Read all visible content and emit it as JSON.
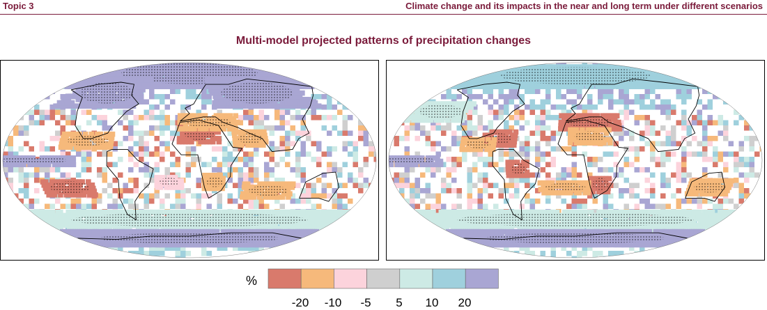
{
  "header": {
    "left": "Topic 3",
    "right": "Climate change and its impacts in the near and long term under different scenarios"
  },
  "title": "Multi-model projected patterns of precipitation changes",
  "legend": {
    "unit": "%",
    "colors": [
      "#d97a6c",
      "#f6b97b",
      "#fcd3dc",
      "#cfcfcf",
      "#cdeae5",
      "#9fd0dd",
      "#a9a6d3"
    ],
    "tick_labels": [
      "-20",
      "-10",
      "-5",
      "5",
      "10",
      "20"
    ]
  },
  "maps": [
    {
      "name": "left",
      "features": [
        {
          "name": "arctic",
          "class": 6,
          "lat": 80,
          "lon": 0,
          "rlat": 12,
          "rlon": 180
        },
        {
          "name": "north-asia",
          "class": 6,
          "lat": 62,
          "lon": 90,
          "rlat": 12,
          "rlon": 60
        },
        {
          "name": "north-america",
          "class": 6,
          "lat": 62,
          "lon": -110,
          "rlat": 12,
          "rlon": 45
        },
        {
          "name": "southern-ocean",
          "class": 4,
          "lat": -55,
          "lon": 0,
          "rlat": 8,
          "rlon": 180
        },
        {
          "name": "antarctica",
          "class": 6,
          "lat": -72,
          "lon": 0,
          "rlat": 6,
          "rlon": 180
        },
        {
          "name": "equatorial-pacific",
          "class": 6,
          "lat": 0,
          "lon": -150,
          "rlat": 4,
          "rlon": 40
        },
        {
          "name": "sahara",
          "class": 0,
          "lat": 25,
          "lon": 10,
          "rlat": 8,
          "rlon": 20
        },
        {
          "name": "mediterranean",
          "class": 1,
          "lat": 35,
          "lon": 20,
          "rlat": 6,
          "rlon": 30
        },
        {
          "name": "middle-east",
          "class": 1,
          "lat": 20,
          "lon": 60,
          "rlat": 6,
          "rlon": 15
        },
        {
          "name": "central-america",
          "class": 1,
          "lat": 18,
          "lon": -100,
          "rlat": 6,
          "rlon": 25
        },
        {
          "name": "south-pacific",
          "class": 0,
          "lat": -25,
          "lon": -120,
          "rlat": 7,
          "rlon": 25
        },
        {
          "name": "south-indian",
          "class": 1,
          "lat": -28,
          "lon": 80,
          "rlat": 6,
          "rlon": 25
        },
        {
          "name": "southern-africa",
          "class": 1,
          "lat": -20,
          "lon": 25,
          "rlat": 6,
          "rlon": 10
        },
        {
          "name": "atlantic-south",
          "class": 2,
          "lat": -20,
          "lon": -20,
          "rlat": 5,
          "rlon": 12
        }
      ]
    },
    {
      "name": "right",
      "features": [
        {
          "name": "arctic",
          "class": 5,
          "lat": 78,
          "lon": 0,
          "rlat": 10,
          "rlon": 180
        },
        {
          "name": "southern-ocean",
          "class": 4,
          "lat": -55,
          "lon": 0,
          "rlat": 8,
          "rlon": 180
        },
        {
          "name": "antarctica",
          "class": 6,
          "lat": -72,
          "lon": 0,
          "rlat": 6,
          "rlon": 180
        },
        {
          "name": "equatorial-pacific",
          "class": 6,
          "lat": 0,
          "lon": -160,
          "rlat": 4,
          "rlon": 30
        },
        {
          "name": "mediterranean",
          "class": 0,
          "lat": 35,
          "lon": 15,
          "rlat": 6,
          "rlon": 30
        },
        {
          "name": "sahara",
          "class": 1,
          "lat": 22,
          "lon": 15,
          "rlat": 6,
          "rlon": 20
        },
        {
          "name": "caribbean",
          "class": 0,
          "lat": 20,
          "lon": -75,
          "rlat": 6,
          "rlon": 15
        },
        {
          "name": "central-america",
          "class": 1,
          "lat": 15,
          "lon": -95,
          "rlat": 5,
          "rlon": 15
        },
        {
          "name": "amazon",
          "class": 0,
          "lat": -8,
          "lon": -55,
          "rlat": 6,
          "rlon": 10
        },
        {
          "name": "southern-africa",
          "class": 0,
          "lat": -22,
          "lon": 25,
          "rlat": 7,
          "rlon": 10
        },
        {
          "name": "australia",
          "class": 1,
          "lat": -25,
          "lon": 135,
          "rlat": 6,
          "rlon": 20
        },
        {
          "name": "south-atlantic",
          "class": 1,
          "lat": -25,
          "lon": -10,
          "rlat": 5,
          "rlon": 25
        },
        {
          "name": "north-pacific",
          "class": 4,
          "lat": 45,
          "lon": -150,
          "rlat": 8,
          "rlon": 30
        }
      ]
    }
  ]
}
